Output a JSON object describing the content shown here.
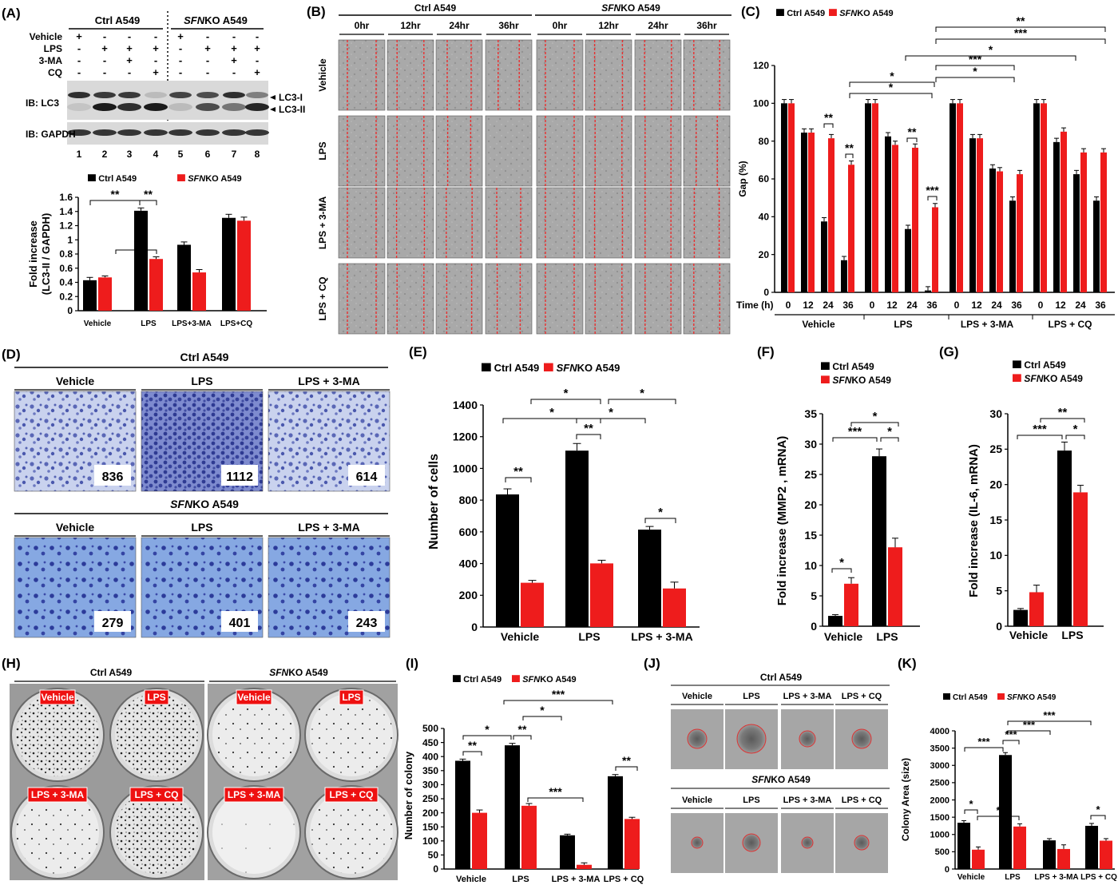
{
  "colors": {
    "ctrl": "#000000",
    "ko": "#ee1c1c",
    "cutline": "#e83030",
    "stain": "#3f4fa8",
    "micro_bg": "#a8a8a8",
    "dish_bg": "#efefef",
    "label_red": "#ee1111"
  },
  "legend": {
    "ctrl": "Ctrl A549",
    "ko_italic": "SFN",
    "ko_rest": "KO A549"
  },
  "panel_a": {
    "letter": "(A)",
    "ctrl_header": "Ctrl A549",
    "ko_header_italic": "SFN",
    "ko_header_rest": "KO A549",
    "rows": [
      {
        "label": "Vehicle",
        "signs": [
          "+",
          "-",
          "-",
          "-",
          "+",
          "-",
          "-",
          "-"
        ]
      },
      {
        "label": "LPS",
        "signs": [
          "-",
          "+",
          "+",
          "+",
          "-",
          "+",
          "+",
          "+"
        ]
      },
      {
        "label": "3-MA",
        "signs": [
          "-",
          "-",
          "+",
          "-",
          "-",
          "-",
          "+",
          "-"
        ]
      },
      {
        "label": "CQ",
        "signs": [
          "-",
          "-",
          "-",
          "+",
          "-",
          "-",
          "-",
          "+"
        ]
      }
    ],
    "blot_lc3_label": "IB: LC3",
    "blot_gapdh_label": "IB: GAPDH",
    "band_lc3_1": "LC3-I",
    "band_lc3_2": "LC3-II",
    "lanes": [
      "1",
      "2",
      "3",
      "4",
      "5",
      "6",
      "7",
      "8"
    ]
  },
  "panel_b": {
    "letter": "(B)",
    "ctrl_header": "Ctrl A549",
    "ko_header_italic": "SFN",
    "ko_header_rest": "KO A549",
    "times": [
      "0hr",
      "12hr",
      "24hr",
      "36hr",
      "0hr",
      "12hr",
      "24hr",
      "36hr"
    ],
    "rows": [
      "Vehicle",
      "LPS",
      "LPS + 3-MA",
      "LPS + CQ"
    ]
  },
  "panel_d": {
    "letter": "(D)",
    "ctrl_title": "Ctrl A549",
    "ko_title_italic": "SFN",
    "ko_title_rest": "KO A549",
    "columns": [
      "Vehicle",
      "LPS",
      "LPS + 3-MA"
    ],
    "ctrl_counts": [
      "836",
      "1112",
      "614"
    ],
    "ko_counts": [
      "279",
      "401",
      "243"
    ]
  },
  "panel_h": {
    "letter": "(H)",
    "ctrl_title": "Ctrl A549",
    "ko_title_italic": "SFN",
    "ko_title_rest": "KO A549",
    "labels": [
      "Vehicle",
      "LPS",
      "LPS + 3-MA",
      "LPS + CQ"
    ]
  },
  "panel_j": {
    "letter": "(J)",
    "ctrl_title": "Ctrl A549",
    "ko_title_italic": "SFN",
    "ko_title_rest": "KO A549",
    "columns": [
      "Vehicle",
      "LPS",
      "LPS + 3-MA",
      "LPS + CQ"
    ]
  },
  "chart_data": [
    {
      "id": "A",
      "type": "bar",
      "categories": [
        "Vehicle",
        "LPS",
        "LPS+3-MA",
        "LPS+CQ"
      ],
      "series": [
        {
          "name": "Ctrl A549",
          "values": [
            0.43,
            1.41,
            0.93,
            1.31
          ],
          "err": [
            0.04,
            0.04,
            0.04,
            0.05
          ]
        },
        {
          "name": "SFNKO A549",
          "values": [
            0.47,
            0.73,
            0.54,
            1.27
          ],
          "err": [
            0.02,
            0.03,
            0.04,
            0.05
          ]
        }
      ],
      "ylabel_line1": "Fold increase",
      "ylabel_line2": "(LC3-II / GAPDH)",
      "ylim": [
        0,
        1.6
      ],
      "yticks": [
        "0",
        "0.2",
        "0.4",
        "0.6",
        "0.8",
        "1",
        "1.2",
        "1.4",
        "1.6"
      ],
      "annotations": [
        "**",
        "**",
        "*"
      ]
    },
    {
      "id": "C",
      "type": "bar",
      "groups": [
        "Vehicle",
        "LPS",
        "LPS + 3-MA",
        "LPS + CQ"
      ],
      "times": [
        "0",
        "12",
        "24",
        "36"
      ],
      "time_label": "Time (h)",
      "series": [
        {
          "name": "Ctrl A549",
          "values": [
            100,
            84.5,
            37.5,
            17,
            100,
            82.5,
            33.5,
            1,
            100,
            81.5,
            65.5,
            48.5,
            100,
            79.5,
            62.5,
            48.5
          ]
        },
        {
          "name": "SFNKO A549",
          "values": [
            100,
            84.5,
            81.5,
            67.5,
            100,
            78,
            76.5,
            45,
            100,
            81.5,
            64,
            62.5,
            100,
            85,
            74,
            74
          ]
        }
      ],
      "ylabel": "Gap (%)",
      "ylim": [
        0,
        120
      ],
      "yticks": [
        "0",
        "20",
        "40",
        "60",
        "80",
        "100",
        "120"
      ],
      "annotations": [
        "**",
        "**",
        "**",
        "***",
        "*",
        "*",
        "*",
        "***",
        "*",
        "***",
        "**"
      ]
    },
    {
      "id": "E",
      "type": "bar",
      "categories": [
        "Vehicle",
        "LPS",
        "LPS + 3-MA"
      ],
      "series": [
        {
          "name": "Ctrl A549",
          "values": [
            836,
            1112,
            614
          ],
          "err": [
            35,
            45,
            20
          ]
        },
        {
          "name": "SFNKO A549",
          "values": [
            279,
            401,
            243
          ],
          "err": [
            15,
            20,
            40
          ]
        }
      ],
      "ylabel": "Number of cells",
      "ylim": [
        0,
        1400
      ],
      "yticks": [
        "0",
        "200",
        "400",
        "600",
        "800",
        "1000",
        "1200",
        "1400"
      ],
      "annotations": [
        "**",
        "*",
        "**",
        "*",
        "*",
        "*",
        "*"
      ]
    },
    {
      "id": "F",
      "type": "bar",
      "categories": [
        "Vehicle",
        "LPS"
      ],
      "series": [
        {
          "name": "Ctrl A549",
          "values": [
            1.7,
            28
          ],
          "err": [
            0.2,
            1.2
          ]
        },
        {
          "name": "SFNKO A549",
          "values": [
            7,
            13
          ],
          "err": [
            1,
            1.5
          ]
        }
      ],
      "ylabel": "Fold increase (MMP2 , mRNA)",
      "ylim": [
        0,
        35
      ],
      "yticks": [
        "0",
        "5",
        "10",
        "15",
        "20",
        "25",
        "30",
        "35"
      ],
      "annotations": [
        "*",
        "***",
        "*",
        "*"
      ]
    },
    {
      "id": "G",
      "type": "bar",
      "categories": [
        "Vehicle",
        "LPS"
      ],
      "series": [
        {
          "name": "Ctrl A549",
          "values": [
            2.3,
            24.8
          ],
          "err": [
            0.2,
            1.2
          ]
        },
        {
          "name": "SFNKO A549",
          "values": [
            4.8,
            18.9
          ],
          "err": [
            1,
            1
          ]
        }
      ],
      "ylabel": "Fold increase (IL-6, mRNA)",
      "ylim": [
        0,
        30
      ],
      "yticks": [
        "0",
        "5",
        "10",
        "15",
        "20",
        "25",
        "30"
      ],
      "annotations": [
        "***",
        "*",
        "**"
      ]
    },
    {
      "id": "I",
      "type": "bar",
      "categories": [
        "Vehicle",
        "LPS",
        "LPS + 3-MA",
        "LPS + CQ"
      ],
      "series": [
        {
          "name": "Ctrl A549",
          "values": [
            385,
            440,
            120,
            330
          ],
          "err": [
            6,
            7,
            4,
            6
          ]
        },
        {
          "name": "SFNKO A549",
          "values": [
            200,
            225,
            15,
            178
          ],
          "err": [
            10,
            8,
            7,
            6
          ]
        }
      ],
      "ylabel": "Number of colony",
      "ylim": [
        0,
        500
      ],
      "yticks": [
        "0",
        "50",
        "100",
        "150",
        "200",
        "250",
        "300",
        "350",
        "400",
        "450",
        "500"
      ],
      "annotations": [
        "**",
        "*",
        "**",
        "***",
        "*",
        "***",
        "**"
      ]
    },
    {
      "id": "K",
      "type": "bar",
      "categories": [
        "Vehicle",
        "LPS",
        "LPS + 3-MA",
        "LPS + CQ"
      ],
      "series": [
        {
          "name": "Ctrl A549",
          "values": [
            1340,
            3300,
            830,
            1250
          ],
          "err": [
            60,
            70,
            50,
            70
          ]
        },
        {
          "name": "SFNKO A549",
          "values": [
            560,
            1230,
            580,
            820
          ],
          "err": [
            80,
            80,
            120,
            60
          ]
        }
      ],
      "ylabel": "Colony Area (size)",
      "ylim": [
        0,
        4000
      ],
      "yticks": [
        "0",
        "500",
        "1000",
        "1500",
        "2000",
        "2500",
        "3000",
        "3500",
        "4000"
      ],
      "annotations": [
        "*",
        "***",
        "*",
        "***",
        "***",
        "***",
        "*"
      ]
    }
  ],
  "panel_letters": {
    "c": "(C)",
    "e": "(E)",
    "f": "(F)",
    "g": "(G)",
    "i": "(I)",
    "k": "(K)"
  }
}
